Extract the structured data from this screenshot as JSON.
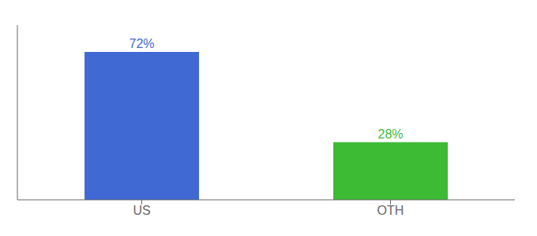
{
  "chart_data": {
    "type": "bar",
    "categories": [
      "US",
      "OTH"
    ],
    "values": [
      72,
      28
    ],
    "value_labels": [
      "72%",
      "28%"
    ],
    "colors": [
      "#4169d4",
      "#3dbb35"
    ],
    "ylim": [
      0,
      85
    ],
    "data_labels": true,
    "tick_labels": "x",
    "grid": false
  }
}
